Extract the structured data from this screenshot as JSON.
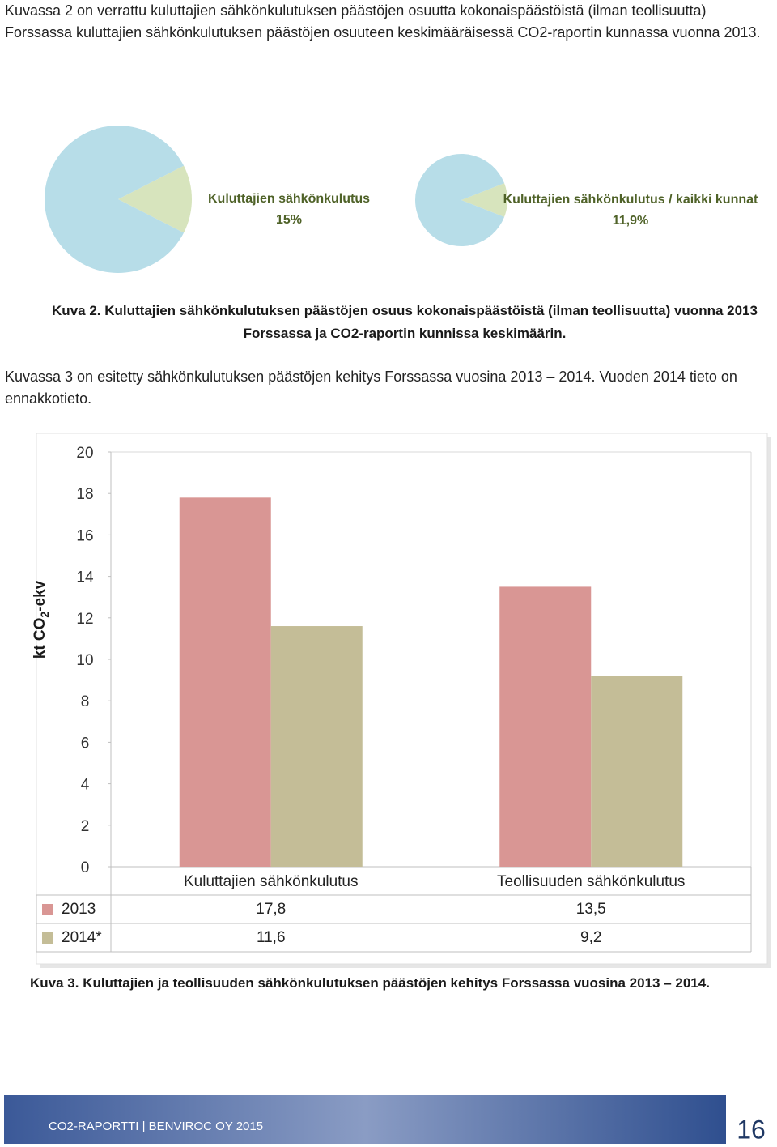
{
  "document": {
    "paragraph_1": "Kuvassa 2 on verrattu kuluttajien sähkönkulutuksen päästöjen osuutta kokonaispäästöistä (ilman teollisuutta) Forssassa kuluttajien sähkönkulutuksen päästöjen osuuteen keskimääräisessä CO2-raportin kunnassa vuonna 2013.",
    "caption_2": "Kuva 2. Kuluttajien sähkönkulutuksen päästöjen osuus kokonaispäästöistä (ilman teollisuutta) vuonna 2013 Forssassa ja CO2-raportin kunnissa keskimäärin.",
    "paragraph_3": "Kuvassa 3 on esitetty sähkönkulutuksen päästöjen kehitys Forssassa vuosina 2013 – 2014. Vuoden 2014 tieto on ennakkotieto.",
    "caption_3": "Kuva 3. Kuluttajien ja teollisuuden sähkönkulutuksen päästöjen kehitys Forssassa vuosina 2013 – 2014.",
    "footer": "CO2-RAPORTTI | BENVIROC OY 2015",
    "page_number": "16"
  },
  "chart_data": [
    {
      "type": "pie",
      "categories": [
        "Kuluttajien sähkönkulutus",
        null
      ],
      "values": [
        15,
        85
      ],
      "value_labels": [
        "15%",
        null
      ],
      "colors": [
        "#d7e4bd",
        "#b7dde8"
      ]
    },
    {
      "type": "pie",
      "categories": [
        "Kuluttajien sähkönkulutus / kaikki kunnat",
        null
      ],
      "values": [
        11.9,
        88.1
      ],
      "value_labels": [
        "11,9%",
        null
      ],
      "colors": [
        "#d7e4bd",
        "#b7dde8"
      ]
    },
    {
      "type": "bar",
      "y_label_parts": [
        "kt CO",
        "2",
        "-ekv"
      ],
      "categories": [
        "Kuluttajien sähkönkulutus",
        "Teollisuuden sähkönkulutus"
      ],
      "series": [
        {
          "name": "2013",
          "color": "#d99694",
          "values": [
            17.8,
            13.5
          ],
          "value_labels": [
            "17,8",
            "13,5"
          ]
        },
        {
          "name": "2014*",
          "color": "#c4bd97",
          "values": [
            11.6,
            9.2
          ],
          "value_labels": [
            "11,6",
            "9,2"
          ]
        }
      ],
      "ylim": [
        0,
        20
      ],
      "yticks": [
        0,
        2,
        4,
        6,
        8,
        10,
        12,
        14,
        16,
        18,
        20
      ]
    }
  ]
}
